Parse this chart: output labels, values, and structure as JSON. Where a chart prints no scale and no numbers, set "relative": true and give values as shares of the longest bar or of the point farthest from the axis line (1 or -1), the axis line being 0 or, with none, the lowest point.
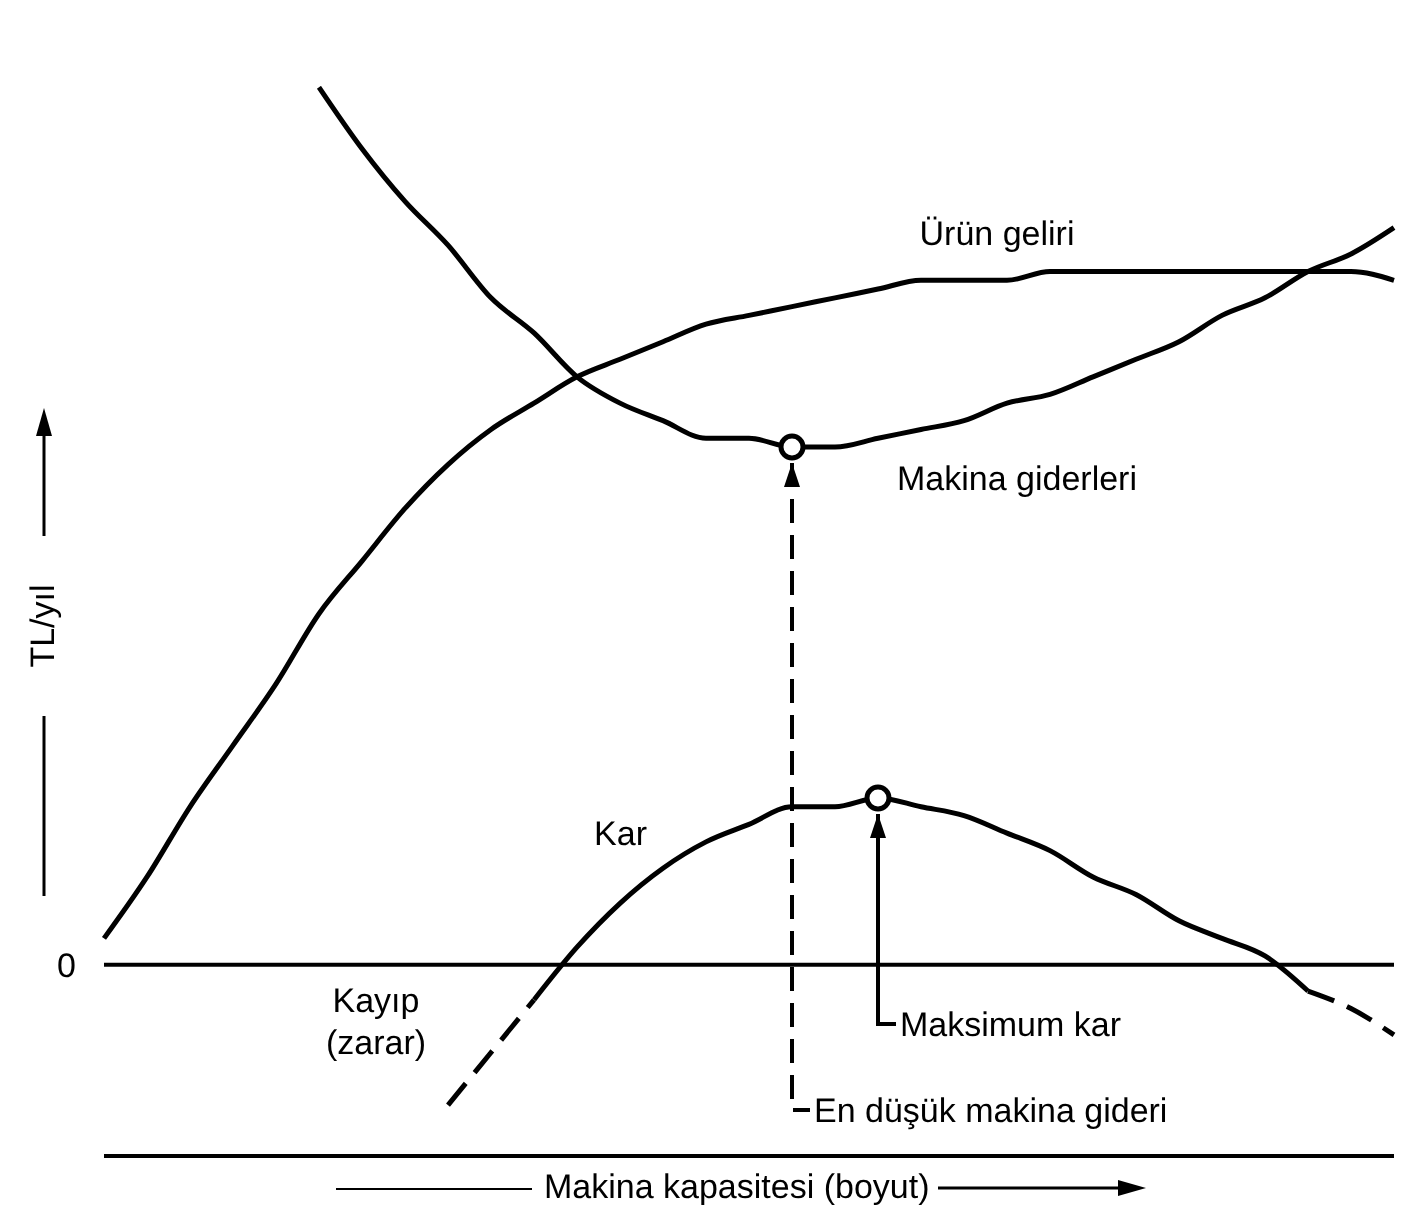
{
  "chart_data": {
    "type": "line",
    "relative": true,
    "xlabel": "Makina kapasitesi (boyut)",
    "ylabel": "TL/yıl",
    "categories": [
      null,
      null,
      null,
      null,
      null,
      null,
      null,
      null,
      null,
      null,
      null,
      null,
      null,
      null,
      null,
      null,
      null,
      null,
      null,
      null,
      null,
      null,
      null,
      null,
      null,
      null,
      null,
      null,
      null,
      null,
      null
    ],
    "series": [
      {
        "name": "Ürün geliri",
        "color": "#000000",
        "line_style": "solid",
        "values": [
          0.03,
          0.1,
          0.18,
          0.25,
          0.32,
          0.4,
          0.46,
          0.52,
          0.57,
          0.61,
          0.64,
          0.67,
          0.69,
          0.71,
          0.73,
          0.74,
          0.75,
          0.76,
          0.77,
          0.78,
          0.78,
          0.78,
          0.79,
          0.79,
          0.79,
          0.79,
          0.79,
          0.79,
          0.79,
          0.79,
          0.78
        ]
      },
      {
        "name": "Makina giderleri",
        "color": "#000000",
        "line_style": "solid",
        "values": [
          null,
          null,
          null,
          null,
          null,
          1.0,
          0.93,
          0.87,
          0.82,
          0.76,
          0.72,
          0.67,
          0.64,
          0.62,
          0.6,
          0.6,
          0.59,
          0.59,
          0.6,
          0.61,
          0.62,
          0.64,
          0.65,
          0.67,
          0.69,
          0.71,
          0.74,
          0.76,
          0.79,
          0.81,
          0.84
        ]
      },
      {
        "name": "Kar",
        "color": "#000000",
        "line_style": "solid",
        "values": [
          null,
          null,
          null,
          null,
          null,
          null,
          null,
          null,
          null,
          null,
          -0.04,
          0.02,
          0.07,
          0.11,
          0.14,
          0.16,
          0.18,
          0.18,
          0.19,
          0.18,
          0.17,
          0.15,
          0.13,
          0.1,
          0.08,
          0.05,
          0.03,
          0.01,
          -0.03,
          null,
          null
        ]
      },
      {
        "color": "#000000",
        "line_style": "dashed",
        "values": [
          null,
          null,
          null,
          null,
          null,
          null,
          null,
          null,
          -0.16,
          -0.1,
          -0.04,
          null,
          null,
          null,
          null,
          null,
          null,
          null,
          null,
          null,
          null,
          null,
          null,
          null,
          null,
          null,
          null,
          null,
          -0.03,
          -0.05,
          -0.08
        ]
      }
    ],
    "ref_lines": [
      {
        "axis": "y",
        "value": 0,
        "label": "0"
      }
    ],
    "annotations": [
      "Kayıp (zarar)",
      "Maksimum kar",
      "En düşük makina gideri"
    ],
    "grid": false,
    "legend": false
  }
}
